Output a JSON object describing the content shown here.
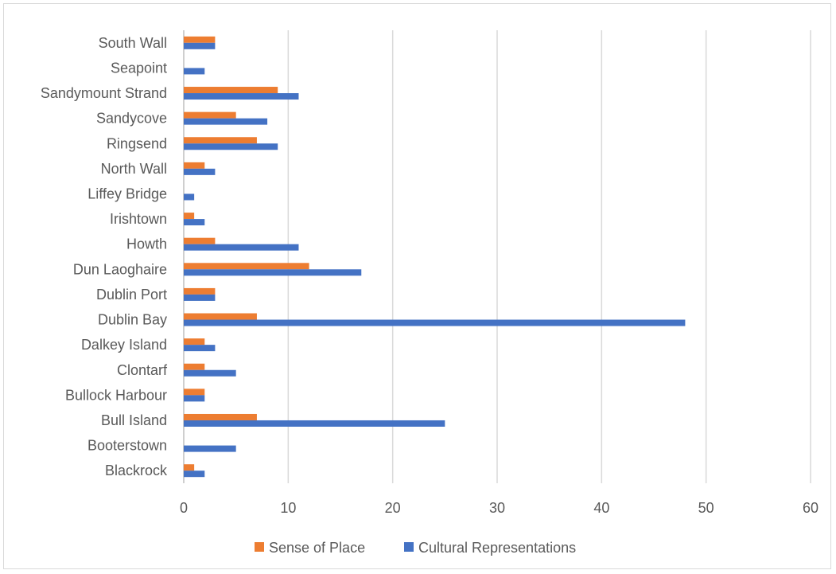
{
  "chart_data": {
    "type": "bar",
    "orientation": "horizontal",
    "categories": [
      "South Wall",
      "Seapoint",
      "Sandymount Strand",
      "Sandycove",
      "Ringsend",
      "North Wall",
      "Liffey Bridge",
      "Irishtown",
      "Howth",
      "Dun Laoghaire",
      "Dublin Port",
      "Dublin Bay",
      "Dalkey Island",
      "Clontarf",
      "Bullock Harbour",
      "Bull Island",
      "Booterstown",
      "Blackrock"
    ],
    "series": [
      {
        "name": "Sense of Place",
        "color": "#ED7D31",
        "values": [
          3,
          0,
          9,
          5,
          7,
          2,
          0,
          1,
          3,
          12,
          3,
          7,
          2,
          2,
          2,
          7,
          0,
          1
        ]
      },
      {
        "name": "Cultural Representations",
        "color": "#4472C4",
        "values": [
          3,
          2,
          11,
          8,
          9,
          3,
          1,
          2,
          11,
          17,
          3,
          48,
          3,
          5,
          2,
          25,
          5,
          2
        ]
      }
    ],
    "xlim": [
      0,
      60
    ],
    "x_ticks": [
      "0",
      "10",
      "20",
      "30",
      "40",
      "50",
      "60"
    ],
    "grid": "vertical",
    "legend_position": "bottom",
    "title": "",
    "xlabel": "",
    "ylabel": ""
  }
}
